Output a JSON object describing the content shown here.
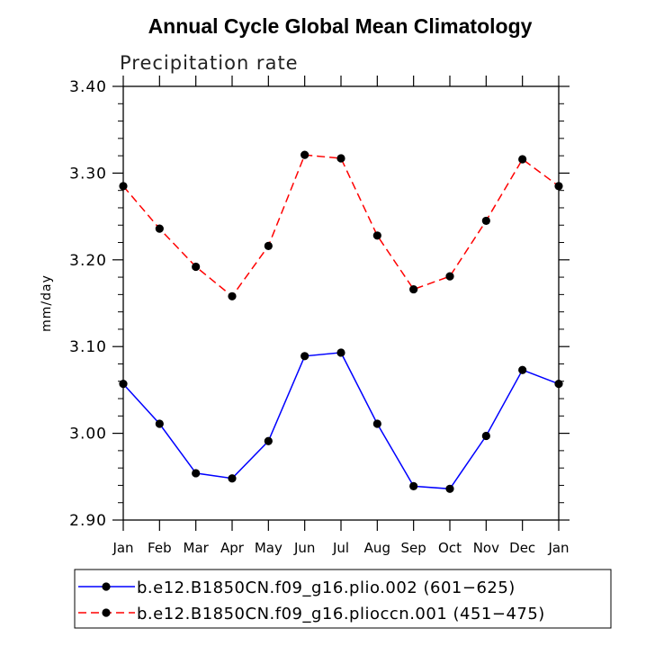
{
  "chart_data": {
    "type": "line",
    "title": "Annual Cycle Global Mean Climatology",
    "subtitle": "Precipitation rate",
    "xlabel": "",
    "ylabel": "mm/day",
    "categories": [
      "Jan",
      "Feb",
      "Mar",
      "Apr",
      "May",
      "Jun",
      "Jul",
      "Aug",
      "Sep",
      "Oct",
      "Nov",
      "Dec",
      "Jan"
    ],
    "ylim": [
      2.9,
      3.4
    ],
    "yticks": [
      "2.90",
      "3.00",
      "3.10",
      "3.20",
      "3.30",
      "3.40"
    ],
    "grid": false,
    "legend_position": "bottom",
    "series": [
      {
        "name": "b.e12.B1850CN.f09_g16.plio.002 (601−625)",
        "color": "#0000ff",
        "line_style": "solid",
        "values": [
          3.057,
          3.011,
          2.954,
          2.948,
          2.991,
          3.089,
          3.093,
          3.011,
          2.939,
          2.936,
          2.997,
          3.073,
          3.057
        ]
      },
      {
        "name": "b.e12.B1850CN.f09_g16.plioccn.001 (451−475)",
        "color": "#ff0000",
        "line_style": "dashed",
        "values": [
          3.285,
          3.236,
          3.192,
          3.158,
          3.216,
          3.321,
          3.317,
          3.228,
          3.166,
          3.181,
          3.245,
          3.316,
          3.285
        ]
      }
    ]
  }
}
